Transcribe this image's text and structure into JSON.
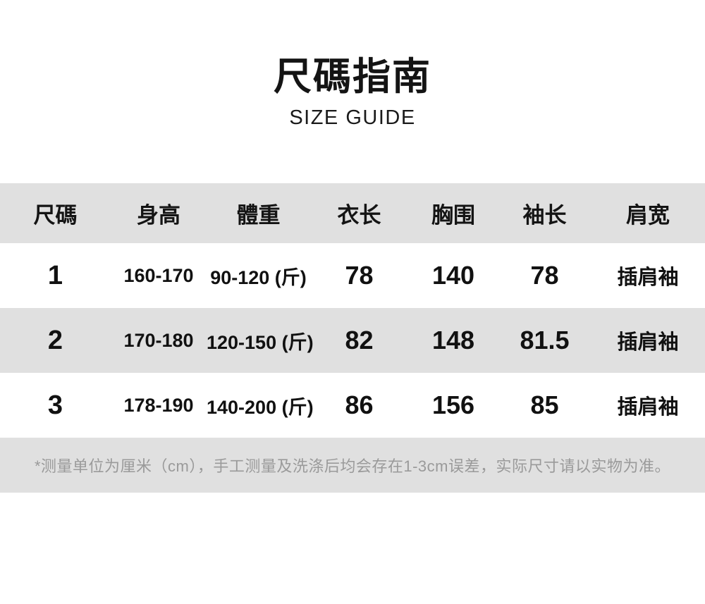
{
  "title": {
    "zh": "尺碼指南",
    "en": "SIZE GUIDE"
  },
  "table": {
    "columns": [
      "尺碼",
      "身高",
      "體重",
      "衣长",
      "胸围",
      "袖长",
      "肩宽"
    ],
    "rows": [
      [
        "1",
        "160-170",
        "90-120 (斤)",
        "78",
        "140",
        "78",
        "插肩袖"
      ],
      [
        "2",
        "170-180",
        "120-150 (斤)",
        "82",
        "148",
        "81.5",
        "插肩袖"
      ],
      [
        "3",
        "178-190",
        "140-200 (斤)",
        "86",
        "156",
        "85",
        "插肩袖"
      ]
    ]
  },
  "footnote": "*测量单位为厘米（cm），手工测量及洗涤后均会存在1-3cm误差，实际尺寸请以实物为准。",
  "colors": {
    "band_gray": "#e0e0e0",
    "text_black": "#141414",
    "footnote_gray": "#9a9a9a",
    "background": "#ffffff"
  }
}
